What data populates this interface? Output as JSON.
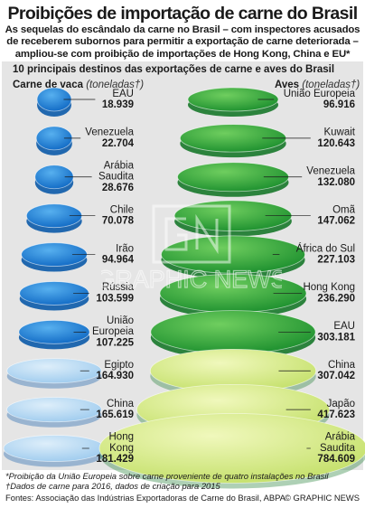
{
  "title": "Proibições de importação de carne do Brasil",
  "subtitle": "As sequelas do escândalo da carne no Brasil – com inspectores acusados de receberem subornos para permitir a exportação de carne deteriorada – ampliou-se com proibição de importações de Hong Kong, China e EU*",
  "panel_heading": "10 principais destinos das exportações de carne e aves do Brasil",
  "watermark": "GRAPHIC NEWS",
  "footnotes": [
    "*Proibição da União Europeia sobre carne proveniente de quatro instalações no Brasil",
    "†Dados de carne para 2016, dados de criação para 2015"
  ],
  "source": "Fontes: Associação das Indústrias Exportadoras de Carne do Brasil, ABPA",
  "credit": "© GRAPHIC NEWS",
  "colors": {
    "beef": "#1e7fd3",
    "beef_light": "#bcdcf4",
    "poultry": "#2ea83c",
    "poultry_light": "#dff09a",
    "panel": "#e5e5e5"
  },
  "chart_data": [
    {
      "type": "bar",
      "title": "Carne de vaca",
      "unit": "(toneladas†)",
      "categories": [
        [
          "EAU"
        ],
        [
          "Venezuela"
        ],
        [
          "Arábia",
          "Saudita"
        ],
        [
          "Chile"
        ],
        [
          "Irão"
        ],
        [
          "Rússia"
        ],
        [
          "União",
          "Europeia"
        ],
        [
          "Egipto"
        ],
        [
          "China"
        ],
        [
          "Hong",
          "Kong"
        ]
      ],
      "value_labels": [
        "18.939",
        "22.704",
        "28.676",
        "70.078",
        "94.964",
        "103.599",
        "107.225",
        "164.930",
        "165.619",
        "181.429"
      ],
      "values": [
        18939,
        22704,
        28676,
        70078,
        94964,
        103599,
        107225,
        164930,
        165619,
        181429
      ]
    },
    {
      "type": "bar",
      "title": "Aves",
      "unit": "(toneladas†)",
      "categories": [
        [
          "União Europeia"
        ],
        [
          "Kuwait"
        ],
        [
          "Venezuela"
        ],
        [
          "Omã"
        ],
        [
          "África do Sul"
        ],
        [
          "Hong Kong"
        ],
        [
          "EAU"
        ],
        [
          "China"
        ],
        [
          "Japão"
        ],
        [
          "Arábia",
          "Saudita"
        ]
      ],
      "value_labels": [
        "96.916",
        "120.643",
        "132.080",
        "147.062",
        "227.103",
        "236.290",
        "303.181",
        "307.042",
        "417.623",
        "784.609"
      ],
      "values": [
        96916,
        120643,
        132080,
        147062,
        227103,
        236290,
        303181,
        307042,
        417623,
        784609
      ]
    }
  ]
}
